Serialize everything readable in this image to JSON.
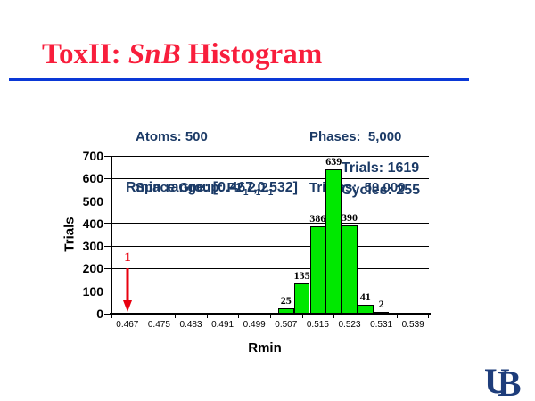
{
  "title": {
    "part1": "ToxII: ",
    "part2_italic": "SnB",
    "part3": " Histogram"
  },
  "header": {
    "atoms": "Atoms: 500",
    "space_group": {
      "prefix": "Space Group: P2",
      "sub1": "1",
      "mid1": "2",
      "sub2": "1",
      "mid2": "2",
      "sub3": "1"
    },
    "phases": "Phases:  5,000",
    "triples": "Triples:  50,000"
  },
  "chart_data": {
    "type": "bar",
    "title": "ToxII: SnB Histogram",
    "xlabel": "Rmin",
    "ylabel": "Trials",
    "ylim": [
      0,
      700
    ],
    "grid": true,
    "bar_color": "#00E800",
    "x_first_tick": 0.467,
    "x_tick_step": 0.008,
    "x_ticks": [
      "0.467",
      "0.475",
      "0.483",
      "0.491",
      "0.499",
      "0.507",
      "0.515",
      "0.523",
      "0.531",
      "0.539"
    ],
    "y_ticks": [
      0,
      100,
      200,
      300,
      400,
      500,
      600,
      700
    ],
    "bars": [
      {
        "x_center": 0.507,
        "value": 25
      },
      {
        "x_center": 0.511,
        "value": 135
      },
      {
        "x_center": 0.515,
        "value": 386
      },
      {
        "x_center": 0.519,
        "value": 639
      },
      {
        "x_center": 0.523,
        "value": 390
      },
      {
        "x_center": 0.527,
        "value": 41
      },
      {
        "x_center": 0.531,
        "value": 2
      }
    ],
    "marker": {
      "x": 0.467,
      "value": 1,
      "label": "1",
      "color": "#E8000F"
    },
    "annotations": {
      "rmin_range": "Rmin range: [0.467,0.532]",
      "trials": "Trials: 1619",
      "cycles": "Cycles: 255"
    }
  },
  "logo": {
    "u": "U",
    "b": "B"
  },
  "colors": {
    "title_red": "#F81E3C",
    "rule_blue": "#0A38D6",
    "navy_text": "#1B3A66",
    "bar_green": "#00E800",
    "marker_red": "#E8000F",
    "logo_navy": "#1E3D7B"
  }
}
